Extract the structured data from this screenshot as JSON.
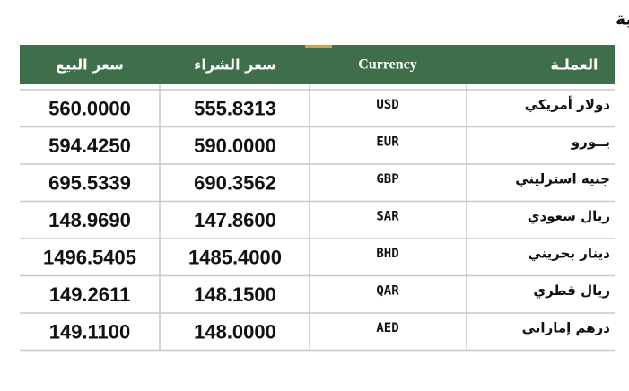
{
  "header": {
    "title": "سعر العملات أمام الجنيه السوداني من مصرف الادخار والتنمية الاجتماعية"
  },
  "table": {
    "columns": [
      "سعر البيع",
      "سعر الشراء",
      "Currency",
      "العملـة"
    ],
    "rows": [
      [
        "560.0000",
        "555.8313",
        "USD",
        "دولار أمريكي"
      ],
      [
        "594.4250",
        "590.0000",
        "EUR",
        "يــورو"
      ],
      [
        "695.5339",
        "690.3562",
        "GBP",
        "جنيه استرليني"
      ],
      [
        "148.9690",
        "147.8600",
        "SAR",
        "ريال سعودي"
      ],
      [
        "1496.5405",
        "1485.4000",
        "BHD",
        "دينار بحريني"
      ],
      [
        "149.2611",
        "148.1500",
        "QAR",
        "ريال قطري"
      ],
      [
        "149.1100",
        "148.0000",
        "AED",
        "درهم إماراتي"
      ]
    ]
  }
}
